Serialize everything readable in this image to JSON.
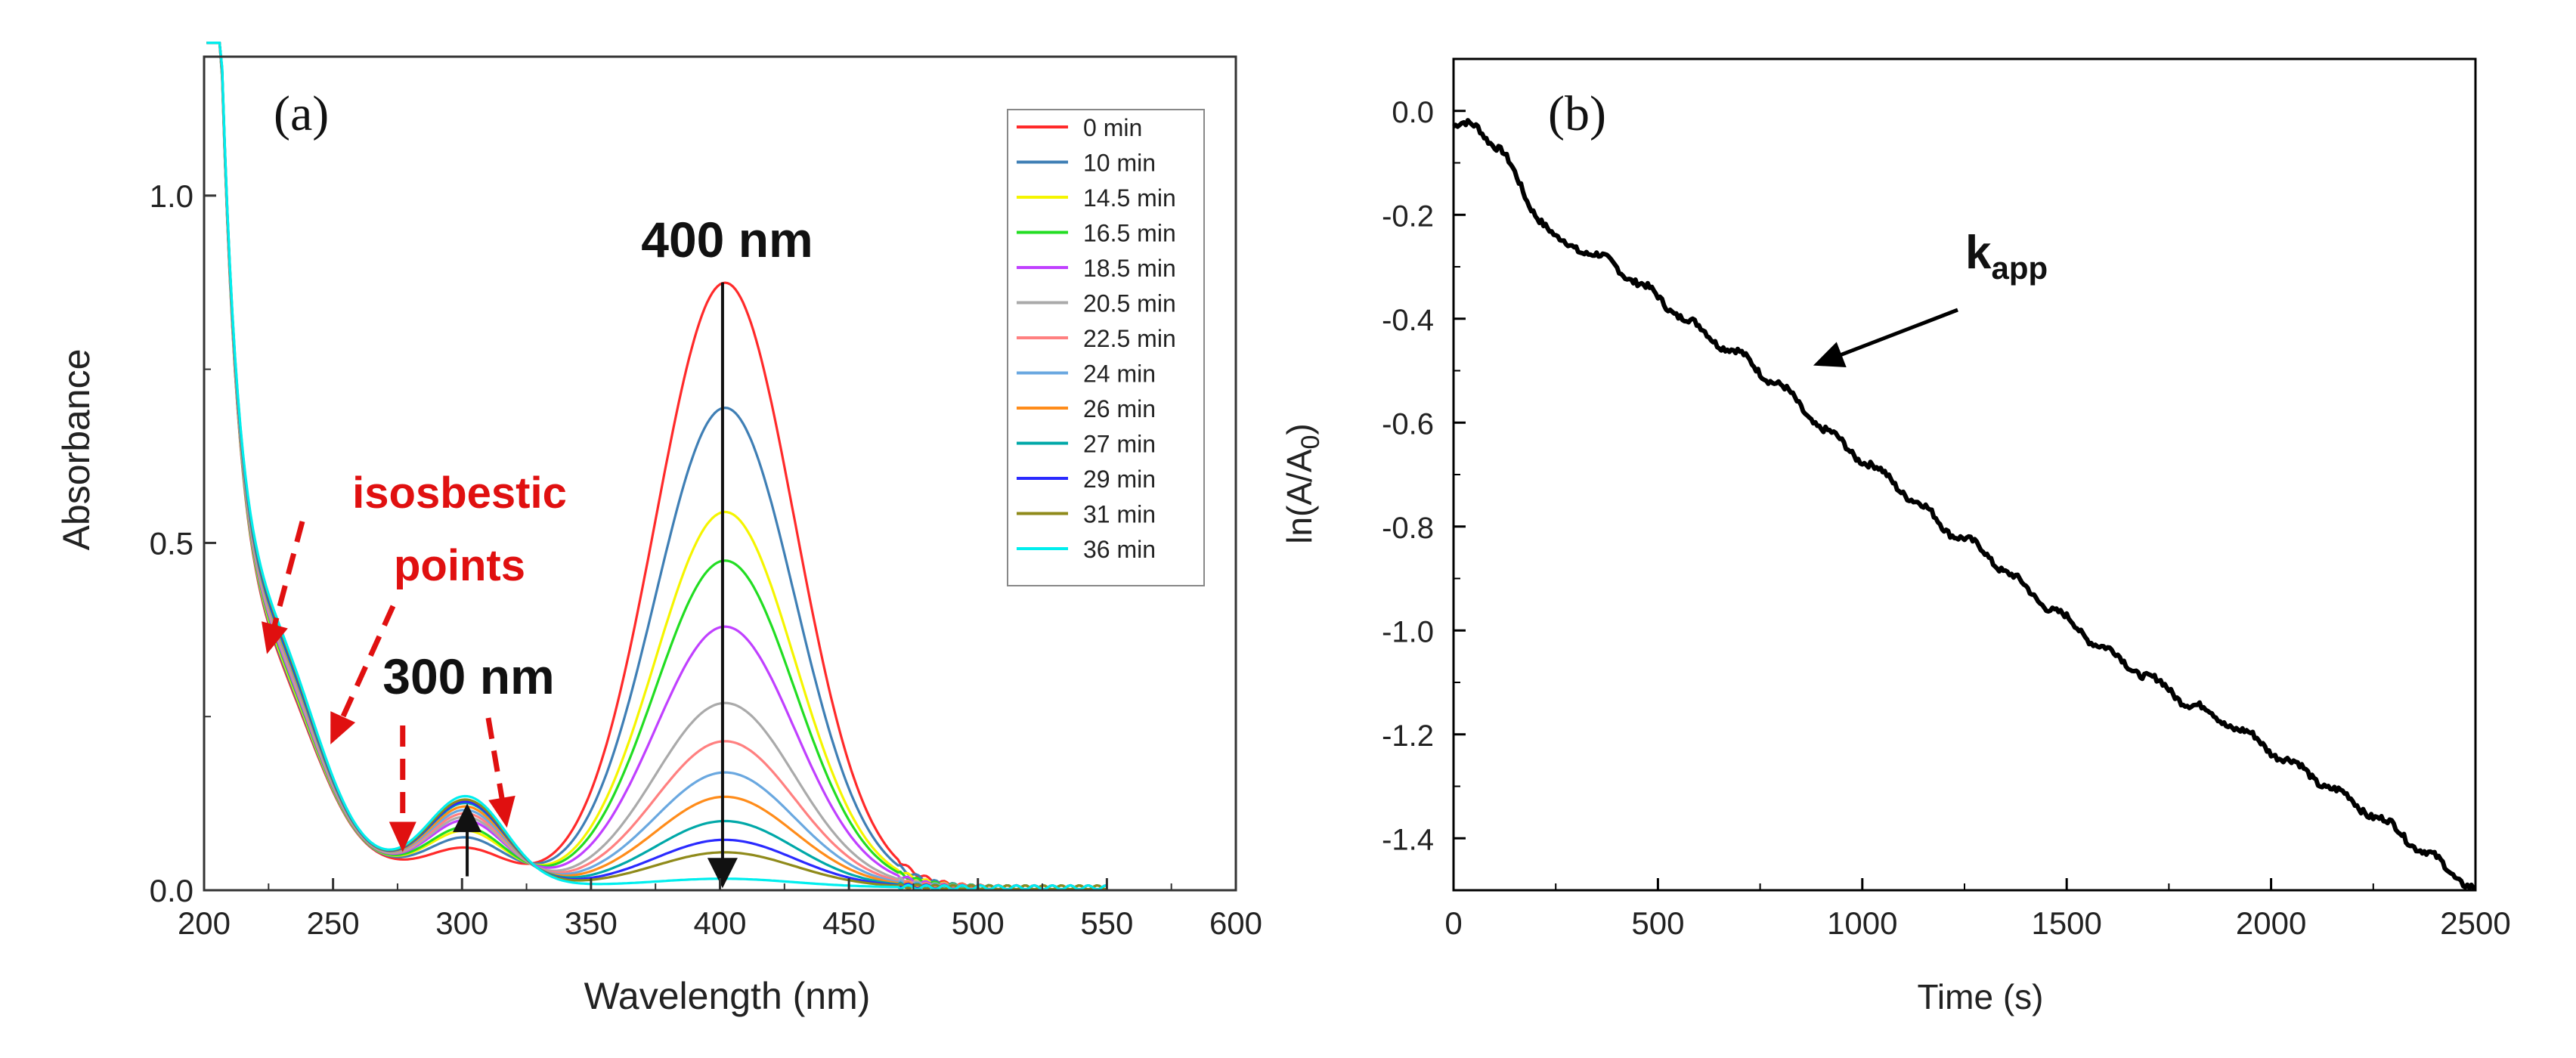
{
  "chart_data": [
    {
      "panel": "(a)",
      "type": "line",
      "xlabel": "Wavelength (nm)",
      "ylabel": "Absorbance",
      "xlim": [
        200,
        600
      ],
      "ylim": [
        0,
        1.2
      ],
      "xticks": [
        200,
        250,
        300,
        350,
        400,
        450,
        500,
        550,
        600
      ],
      "yticks": [
        0.0,
        0.5,
        1.0
      ],
      "ytick_labels": [
        "0.0",
        "0.5",
        "1.0"
      ],
      "legend_position": "top-right",
      "series": [
        {
          "name": "0 min",
          "color": "#ff2a2a",
          "peak400": 0.87,
          "peak300": 0.045,
          "band230": 0.3
        },
        {
          "name": "10 min",
          "color": "#3f7fb5",
          "peak400": 0.69,
          "peak300": 0.06,
          "band230": 0.32
        },
        {
          "name": "14.5 min",
          "color": "#f5f500",
          "peak400": 0.54,
          "peak300": 0.07,
          "band230": 0.33
        },
        {
          "name": "16.5 min",
          "color": "#22dd22",
          "peak400": 0.47,
          "peak300": 0.075,
          "band230": 0.335
        },
        {
          "name": "18.5 min",
          "color": "#c040ff",
          "peak400": 0.375,
          "peak300": 0.085,
          "band230": 0.34
        },
        {
          "name": "20.5 min",
          "color": "#aaaaaa",
          "peak400": 0.265,
          "peak300": 0.09,
          "band230": 0.345
        },
        {
          "name": "22.5 min",
          "color": "#ff8080",
          "peak400": 0.21,
          "peak300": 0.095,
          "band230": 0.35
        },
        {
          "name": "24 min",
          "color": "#6aa8e0",
          "peak400": 0.165,
          "peak300": 0.1,
          "band230": 0.355
        },
        {
          "name": "26 min",
          "color": "#ff8c1a",
          "peak400": 0.13,
          "peak300": 0.105,
          "band230": 0.36
        },
        {
          "name": "27 min",
          "color": "#00a8a8",
          "peak400": 0.095,
          "peak300": 0.11,
          "band230": 0.36
        },
        {
          "name": "29 min",
          "color": "#2a2aff",
          "peak400": 0.068,
          "peak300": 0.112,
          "band230": 0.365
        },
        {
          "name": "31 min",
          "color": "#8f8a1a",
          "peak400": 0.05,
          "peak300": 0.115,
          "band230": 0.37
        },
        {
          "name": "36 min",
          "color": "#00eeee",
          "peak400": 0.012,
          "peak300": 0.12,
          "band230": 0.375
        }
      ],
      "annotations": {
        "peak_400": "400 nm",
        "peak_300": "300 nm",
        "isosbestic_line1": "isosbestic",
        "isosbestic_line2": "points",
        "isosbestic_wavelengths": [
          222,
          249,
          277,
          318
        ]
      }
    },
    {
      "panel": "(b)",
      "type": "line",
      "xlabel": "Time (s)",
      "ylabel_main": "ln(A/A",
      "ylabel_sub": "0",
      "ylabel_end": ")",
      "xlim": [
        0,
        2500
      ],
      "ylim": [
        -1.5,
        0.1
      ],
      "xticks": [
        0,
        500,
        1000,
        1500,
        2000,
        2500
      ],
      "yticks": [
        0.0,
        -0.2,
        -0.4,
        -0.6,
        -0.8,
        -1.0,
        -1.2,
        -1.4
      ],
      "ytick_labels": [
        "0.0",
        "-0.2",
        "-0.4",
        "-0.6",
        "-0.8",
        "-1.0",
        "-1.2",
        "-1.4"
      ],
      "series": [
        {
          "name": "ln(A/A0)",
          "color": "#000000",
          "x": [
            0,
            60,
            120,
            180,
            250,
            300,
            400,
            500,
            600,
            700,
            800,
            900,
            1000,
            1100,
            1200,
            1300,
            1400,
            1500,
            1600,
            1700,
            1800,
            1900,
            2000,
            2100,
            2200,
            2300,
            2400,
            2500
          ],
          "y": [
            -0.03,
            -0.03,
            -0.08,
            -0.17,
            -0.25,
            -0.26,
            -0.3,
            -0.36,
            -0.42,
            -0.47,
            -0.53,
            -0.61,
            -0.67,
            -0.73,
            -0.8,
            -0.85,
            -0.92,
            -0.98,
            -1.04,
            -1.09,
            -1.14,
            -1.18,
            -1.23,
            -1.28,
            -1.33,
            -1.38,
            -1.44,
            -1.5
          ]
        }
      ],
      "annotations": {
        "k_main": "k",
        "k_sub": "app"
      }
    }
  ]
}
